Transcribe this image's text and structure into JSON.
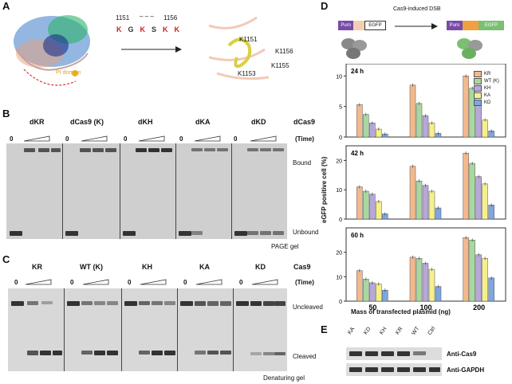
{
  "panels": {
    "A": {
      "label": "A",
      "range_start": "1151",
      "range_dash": "– – –",
      "range_end": "1156",
      "sequence": [
        "K",
        "G",
        "K",
        "S",
        "K",
        "K"
      ],
      "pi_domain": "PI domain",
      "residues": [
        "K1151",
        "K1156",
        "K1155",
        "K1153"
      ]
    },
    "B": {
      "label": "B",
      "lanes": [
        "dKR",
        "dCas9 (K)",
        "dKH",
        "dKA",
        "dKD"
      ],
      "protein_label": "dCas9",
      "time_label": "(Time)",
      "zero_label": "0",
      "bound": "Bound",
      "unbound": "Unbound",
      "gel_type": "PAGE gel"
    },
    "C": {
      "label": "C",
      "lanes": [
        "KR",
        "WT (K)",
        "KH",
        "KA",
        "KD"
      ],
      "protein_label": "Cas9",
      "time_label": "(Time)",
      "zero_label": "0",
      "uncleaved": "Uncleaved",
      "cleaved": "Cleaved",
      "gel_type": "Denaturing gel"
    },
    "D": {
      "label": "D",
      "construct_left": [
        "Puro",
        "EGFP"
      ],
      "construct_right": [
        "Puro",
        "EGFP"
      ],
      "arrow_text": "Cas9-induced DSB",
      "ylabel": "eGFP positive cell (%)",
      "xlabel": "Mass of transfected plasmid (ng)"
    },
    "E": {
      "label": "E",
      "lanes": [
        "KA",
        "KD",
        "KH",
        "KR",
        "WT",
        "Ctrl"
      ],
      "blots": [
        "Anti-Cas9",
        "Anti-GAPDH"
      ]
    }
  },
  "colors": {
    "KR": "#f2b98e",
    "WT (K)": "#a8d8a0",
    "KH": "#b7a8d8",
    "KA": "#f5f08a",
    "KD": "#7ea6e0"
  },
  "chart_data": [
    {
      "type": "bar",
      "title": "24 h",
      "categories": [
        "50",
        "100",
        "200"
      ],
      "ylim": [
        0,
        12
      ],
      "yticks": [
        0,
        5,
        10
      ],
      "legend": "top-right",
      "series": [
        {
          "name": "KR",
          "values": [
            5.3,
            8.5,
            10.0
          ]
        },
        {
          "name": "WT (K)",
          "values": [
            3.7,
            5.5,
            8.0
          ]
        },
        {
          "name": "KH",
          "values": [
            2.3,
            3.5,
            5.5
          ]
        },
        {
          "name": "KA",
          "values": [
            1.3,
            2.3,
            2.8
          ]
        },
        {
          "name": "KD",
          "values": [
            0.5,
            0.6,
            1.0
          ]
        }
      ]
    },
    {
      "type": "bar",
      "title": "42 h",
      "categories": [
        "50",
        "100",
        "200"
      ],
      "ylim": [
        0,
        25
      ],
      "yticks": [
        0,
        10,
        20
      ],
      "series": [
        {
          "name": "KR",
          "values": [
            11.0,
            18.0,
            22.5
          ]
        },
        {
          "name": "WT (K)",
          "values": [
            9.5,
            13.0,
            19.0
          ]
        },
        {
          "name": "KH",
          "values": [
            8.5,
            11.5,
            14.5
          ]
        },
        {
          "name": "KA",
          "values": [
            6.0,
            9.5,
            12.0
          ]
        },
        {
          "name": "KD",
          "values": [
            1.8,
            3.8,
            4.8
          ]
        }
      ]
    },
    {
      "type": "bar",
      "title": "60 h",
      "categories": [
        "50",
        "100",
        "200"
      ],
      "ylim": [
        0,
        30
      ],
      "yticks": [
        0,
        10,
        20
      ],
      "xlabel": "Mass of transfected plasmid (ng)",
      "series": [
        {
          "name": "KR",
          "values": [
            12.5,
            18.0,
            26.0
          ]
        },
        {
          "name": "WT (K)",
          "values": [
            9.0,
            17.5,
            25.0
          ]
        },
        {
          "name": "KH",
          "values": [
            7.5,
            15.5,
            19.0
          ]
        },
        {
          "name": "KA",
          "values": [
            7.0,
            13.0,
            17.5
          ]
        },
        {
          "name": "KD",
          "values": [
            4.5,
            6.0,
            9.5
          ]
        }
      ]
    }
  ]
}
